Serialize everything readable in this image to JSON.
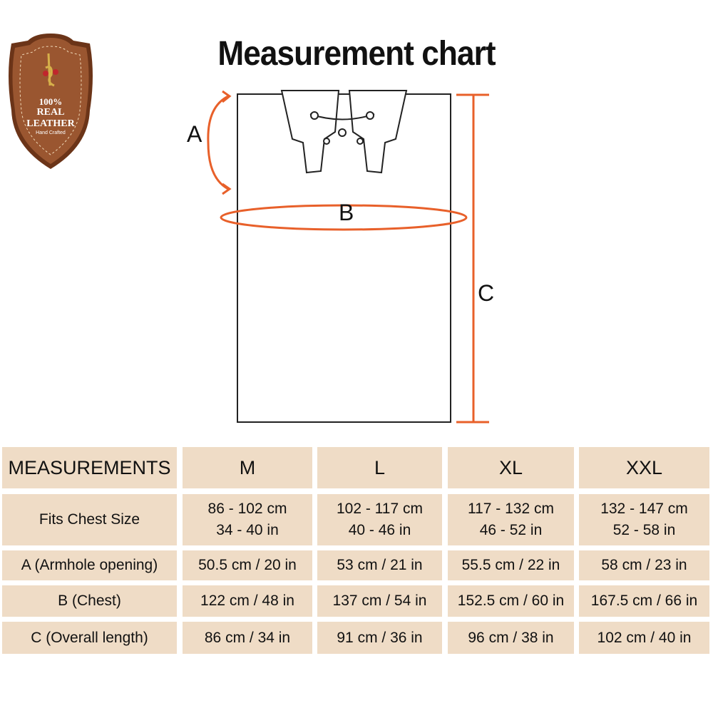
{
  "title": "Measurement chart",
  "badge": {
    "line1": "100%",
    "line2": "REAL",
    "line3": "LEATHER",
    "line4": "Hand Crafted"
  },
  "diagram": {
    "labels": {
      "a": "A",
      "b": "B",
      "c": "C"
    },
    "accent_color": "#e8602a"
  },
  "table": {
    "headers": [
      "MEASUREMENTS",
      "M",
      "L",
      "XL",
      "XXL"
    ],
    "rows": [
      {
        "label": "Fits Chest Size",
        "values": [
          [
            "86 - 102 cm",
            "34 - 40 in"
          ],
          [
            "102 - 117 cm",
            "40 - 46 in"
          ],
          [
            "117 - 132 cm",
            "46 - 52 in"
          ],
          [
            "132 - 147 cm",
            "52 - 58 in"
          ]
        ]
      },
      {
        "label": "A (Armhole opening)",
        "values": [
          [
            "50.5 cm / 20 in"
          ],
          [
            "53 cm / 21 in"
          ],
          [
            "55.5 cm / 22 in"
          ],
          [
            "58 cm / 23 in"
          ]
        ]
      },
      {
        "label": "B (Chest)",
        "values": [
          [
            "122 cm / 48 in"
          ],
          [
            "137 cm / 54 in"
          ],
          [
            "152.5 cm / 60 in"
          ],
          [
            "167.5 cm / 66 in"
          ]
        ]
      },
      {
        "label": "C (Overall length)",
        "values": [
          [
            "86 cm / 34 in"
          ],
          [
            "91 cm / 36 in"
          ],
          [
            "96 cm / 38 in"
          ],
          [
            "102 cm / 40 in"
          ]
        ]
      }
    ]
  }
}
